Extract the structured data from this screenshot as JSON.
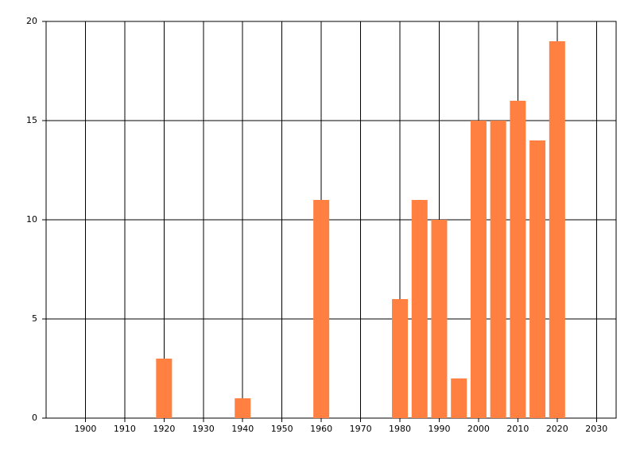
{
  "chart_data": {
    "type": "bar",
    "x": [
      1920,
      1940,
      1960,
      1980,
      1985,
      1990,
      1995,
      2000,
      2005,
      2010,
      2015,
      2020
    ],
    "values": [
      3,
      1,
      11,
      6,
      11,
      10,
      2,
      15,
      15,
      16,
      14,
      19
    ],
    "color": "#ff8040",
    "xlim": [
      1890,
      2035
    ],
    "xticks": [
      1900,
      1910,
      1920,
      1930,
      1940,
      1950,
      1960,
      1970,
      1980,
      1990,
      2000,
      2010,
      2020,
      2030
    ],
    "ylim": [
      0,
      20
    ],
    "yticks": [
      0,
      5,
      10,
      15,
      20
    ],
    "grid": true
  }
}
